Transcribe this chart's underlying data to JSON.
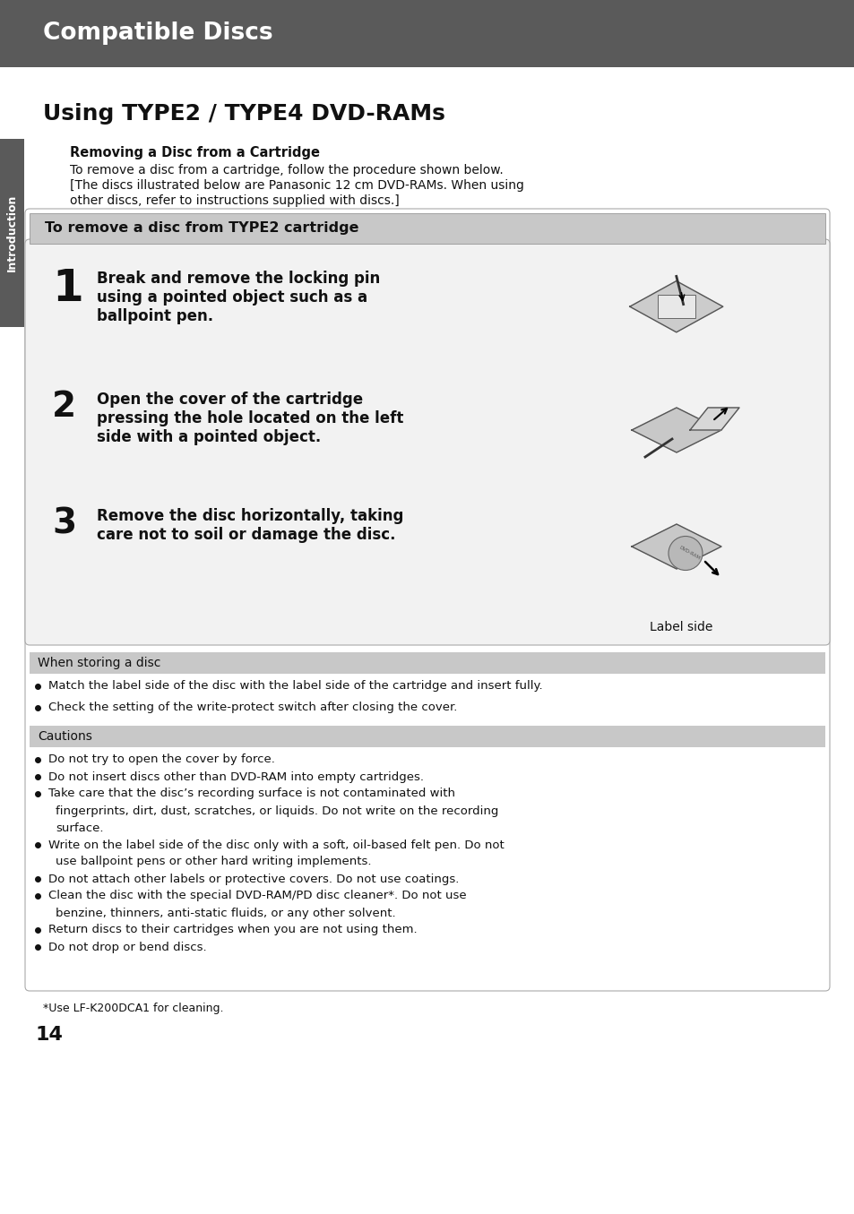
{
  "page_bg": "#ffffff",
  "header_bg": "#5a5a5a",
  "header_text": "Compatible Discs",
  "header_text_color": "#ffffff",
  "side_tab_bg": "#5a5a5a",
  "side_tab_text": "Introduction",
  "side_tab_text_color": "#ffffff",
  "main_title": "Using TYPE2 / TYPE4 DVD-RAMs",
  "subtitle_bold": "Removing a Disc from a Cartridge",
  "intro_line1": "To remove a disc from a cartridge, follow the procedure shown below.",
  "intro_line2": "[The discs illustrated below are Panasonic 12 cm DVD-RAMs. When using",
  "intro_line3": "other discs, refer to instructions supplied with discs.]",
  "box_bg": "#c8c8c8",
  "box_text": "To remove a disc from TYPE2 cartridge",
  "inner_box_bg": "#f2f2f2",
  "inner_box_border": "#aaaaaa",
  "step1_num": "1",
  "step1_lines": [
    "Break and remove the locking pin",
    "using a pointed object such as a",
    "ballpoint pen."
  ],
  "step2_num": "2",
  "step2_lines": [
    "Open the cover of the cartridge",
    "pressing the hole located on the left",
    "side with a pointed object."
  ],
  "step3_num": "3",
  "step3_lines": [
    "Remove the disc horizontally, taking",
    "care not to soil or damage the disc."
  ],
  "label_side": "Label side",
  "ws_bg": "#c8c8c8",
  "ws_title": "When storing a disc",
  "ws_bullet1": "Match the label side of the disc with the label side of the cartridge and insert fully.",
  "ws_bullet2": "Check the setting of the write-protect switch after closing the cover.",
  "ca_bg": "#c8c8c8",
  "ca_title": "Cautions",
  "ca_bullet1": "Do not try to open the cover by force.",
  "ca_bullet2": "Do not insert discs other than DVD-RAM into empty cartridges.",
  "ca_bullet3a": "Take care that the disc’s recording surface is not contaminated with",
  "ca_bullet3b": "fingerprints, dirt, dust, scratches, or liquids. Do not write on the recording",
  "ca_bullet3c": "surface.",
  "ca_bullet4a": "Write on the label side of the disc only with a soft, oil-based felt pen. Do not",
  "ca_bullet4b": "use ballpoint pens or other hard writing implements.",
  "ca_bullet5": "Do not attach other labels or protective covers. Do not use coatings.",
  "ca_bullet6a": "Clean the disc with the special DVD-RAM/PD disc cleaner*. Do not use",
  "ca_bullet6b": "benzine, thinners, anti-static fluids, or any other solvent.",
  "ca_bullet7": "Return discs to their cartridges when you are not using them.",
  "ca_bullet8": "Do not drop or bend discs.",
  "footnote": "*Use LF-K200DCA1 for cleaning.",
  "page_number": "14"
}
